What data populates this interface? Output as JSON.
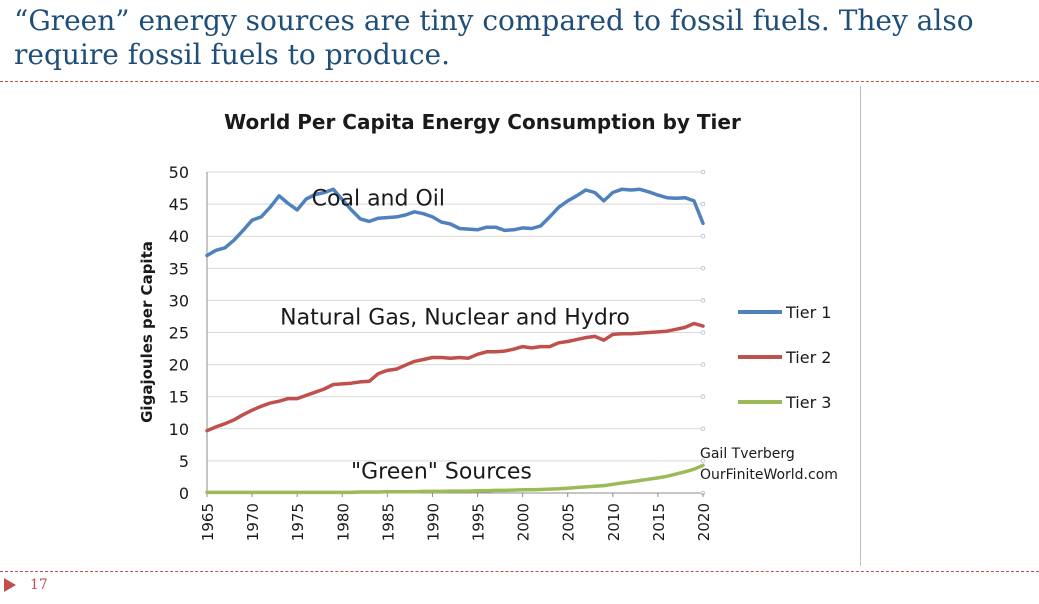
{
  "slide": {
    "title": "“Green” energy sources are tiny compared to fossil fuels. They also require fossil fuels to produce.",
    "page_number": "17",
    "colors": {
      "title": "#1F4E79",
      "accent": "#C0504D"
    }
  },
  "credit": {
    "line1": "Gail Tverberg",
    "line2": "OurFiniteWorld.com"
  },
  "chart_data": {
    "type": "line",
    "title": "World Per Capita Energy Consumption by Tier",
    "xlabel": "",
    "ylabel": "Gigajoules per Capita",
    "xlim": [
      1965,
      2020
    ],
    "ylim": [
      0,
      50
    ],
    "y_ticks": [
      0,
      5,
      10,
      15,
      20,
      25,
      30,
      35,
      40,
      45,
      50
    ],
    "x_ticks": [
      1965,
      1970,
      1975,
      1980,
      1985,
      1990,
      1995,
      2000,
      2005,
      2010,
      2015,
      2020
    ],
    "grid": true,
    "legend_position": "right",
    "x": [
      1965,
      1966,
      1967,
      1968,
      1969,
      1970,
      1971,
      1972,
      1973,
      1974,
      1975,
      1976,
      1977,
      1978,
      1979,
      1980,
      1981,
      1982,
      1983,
      1984,
      1985,
      1986,
      1987,
      1988,
      1989,
      1990,
      1991,
      1992,
      1993,
      1994,
      1995,
      1996,
      1997,
      1998,
      1999,
      2000,
      2001,
      2002,
      2003,
      2004,
      2005,
      2006,
      2007,
      2008,
      2009,
      2010,
      2011,
      2012,
      2013,
      2014,
      2015,
      2016,
      2017,
      2018,
      2019,
      2020
    ],
    "series": [
      {
        "name": "Tier 1",
        "color": "#4F81BD",
        "values": [
          37,
          37.8,
          38.2,
          39.4,
          40.9,
          42.5,
          43,
          44.5,
          46.3,
          45.1,
          44.1,
          45.8,
          46.5,
          46.8,
          47.3,
          45.7,
          44.1,
          42.7,
          42.3,
          42.8,
          42.9,
          43,
          43.3,
          43.8,
          43.5,
          43,
          42.2,
          41.9,
          41.2,
          41.1,
          41,
          41.4,
          41.4,
          40.9,
          41,
          41.3,
          41.2,
          41.6,
          43,
          44.5,
          45.5,
          46.3,
          47.2,
          46.8,
          45.5,
          46.8,
          47.3,
          47.2,
          47.3,
          46.9,
          46.4,
          46,
          45.9,
          46,
          45.5,
          42
        ]
      },
      {
        "name": "Tier 2",
        "color": "#C0504D",
        "values": [
          9.7,
          10.3,
          10.8,
          11.4,
          12.2,
          12.9,
          13.5,
          14,
          14.3,
          14.7,
          14.7,
          15.2,
          15.7,
          16.2,
          16.9,
          17,
          17.1,
          17.3,
          17.4,
          18.6,
          19.1,
          19.3,
          19.9,
          20.5,
          20.8,
          21.1,
          21.1,
          21,
          21.1,
          21,
          21.6,
          22,
          22,
          22.1,
          22.4,
          22.8,
          22.6,
          22.8,
          22.8,
          23.4,
          23.6,
          23.9,
          24.2,
          24.4,
          23.8,
          24.7,
          24.8,
          24.8,
          24.9,
          25,
          25.1,
          25.2,
          25.5,
          25.8,
          26.4,
          26
        ]
      },
      {
        "name": "Tier 3",
        "color": "#9BBB59",
        "values": [
          0.1,
          0.1,
          0.1,
          0.1,
          0.1,
          0.1,
          0.1,
          0.1,
          0.1,
          0.1,
          0.1,
          0.1,
          0.1,
          0.1,
          0.1,
          0.1,
          0.1,
          0.15,
          0.15,
          0.15,
          0.2,
          0.2,
          0.2,
          0.2,
          0.25,
          0.25,
          0.25,
          0.3,
          0.3,
          0.3,
          0.35,
          0.35,
          0.4,
          0.4,
          0.45,
          0.5,
          0.5,
          0.55,
          0.6,
          0.65,
          0.75,
          0.85,
          0.95,
          1.05,
          1.15,
          1.35,
          1.55,
          1.75,
          1.95,
          2.15,
          2.35,
          2.6,
          2.95,
          3.3,
          3.7,
          4.3
        ]
      }
    ],
    "annotations": [
      {
        "text": "Coal and Oil",
        "x": 1984,
        "y": 46
      },
      {
        "text": "Natural Gas, Nuclear and Hydro",
        "x": 1992.5,
        "y": 27.5
      },
      {
        "text": "\"Green\" Sources",
        "x": 1991,
        "y": 3.5
      }
    ]
  }
}
